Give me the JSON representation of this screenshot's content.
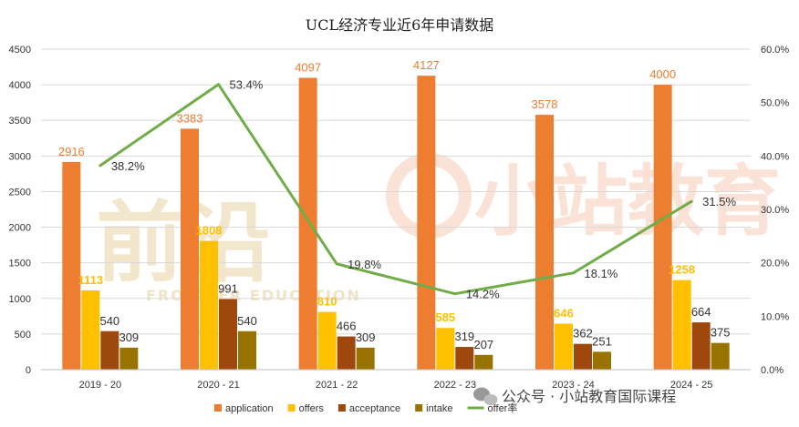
{
  "chart_data": {
    "type": "bar",
    "title": "UCL经济专业近6年申请数据",
    "categories": [
      "2019 - 20",
      "2020 - 21",
      "2021 - 22",
      "2022 - 23",
      "2023 - 24",
      "2024 - 25"
    ],
    "series": [
      {
        "name": "application",
        "type": "bar",
        "axis": "left",
        "color": "#ED7D31",
        "label_color": "#ED7D31",
        "values": [
          2916,
          3383,
          4097,
          4127,
          3578,
          4000
        ]
      },
      {
        "name": "offers",
        "type": "bar",
        "axis": "left",
        "color": "#FFC000",
        "label_color": "#FFC000",
        "values": [
          1113,
          1808,
          810,
          585,
          646,
          1258
        ]
      },
      {
        "name": "acceptance",
        "type": "bar",
        "axis": "left",
        "color": "#9E480E",
        "label_color": "#333333",
        "values": [
          540,
          991,
          466,
          319,
          362,
          664
        ]
      },
      {
        "name": "intake",
        "type": "bar",
        "axis": "left",
        "color": "#997300",
        "label_color": "#333333",
        "values": [
          309,
          540,
          309,
          207,
          251,
          375
        ]
      },
      {
        "name": "offer率",
        "type": "line",
        "axis": "right",
        "color": "#70AD47",
        "label_color": "#333333",
        "values": [
          38.2,
          53.4,
          19.8,
          14.2,
          18.1,
          31.5
        ],
        "labels": [
          "38.2%",
          "53.4%",
          "19.8%",
          "14.2%",
          "18.1%",
          "31.5%"
        ]
      }
    ],
    "y_left": {
      "min": 0,
      "max": 4500,
      "step": 500,
      "ticks": [
        "0",
        "500",
        "1000",
        "1500",
        "2000",
        "2500",
        "3000",
        "3500",
        "4000",
        "4500"
      ]
    },
    "y_right": {
      "min": 0,
      "max": 60,
      "step": 10,
      "ticks": [
        "0.0%",
        "10.0%",
        "20.0%",
        "30.0%",
        "40.0%",
        "50.0%",
        "60.0%"
      ]
    },
    "grid": true,
    "legend_position": "bottom"
  },
  "watermarks": {
    "left": "前沿",
    "left_sub": "FRONTIER EDUCATION",
    "right": "小站教育"
  },
  "credit": "公众号 · 小站教育国际课程"
}
